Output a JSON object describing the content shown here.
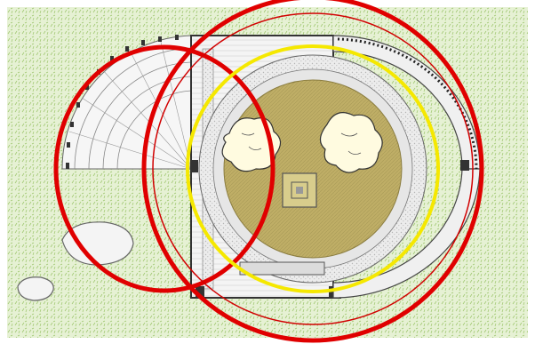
{
  "colors": {
    "background": "#ffffff",
    "grass": "#c9e2a6",
    "grass_hatch": "#9cc56b",
    "gravel": "#dcdcdc",
    "plan_line": "#555555",
    "wall": "#333333",
    "inner_court": "#b9a962",
    "rock_fill": "#f2f2f2",
    "highlight_red": "#e00000",
    "highlight_yellow": "#f5e800"
  },
  "icons": [
    "tree-canopy-icon",
    "tree-canopy-icon",
    "center-marker-icon",
    "boulder-icon",
    "boulder-icon"
  ]
}
